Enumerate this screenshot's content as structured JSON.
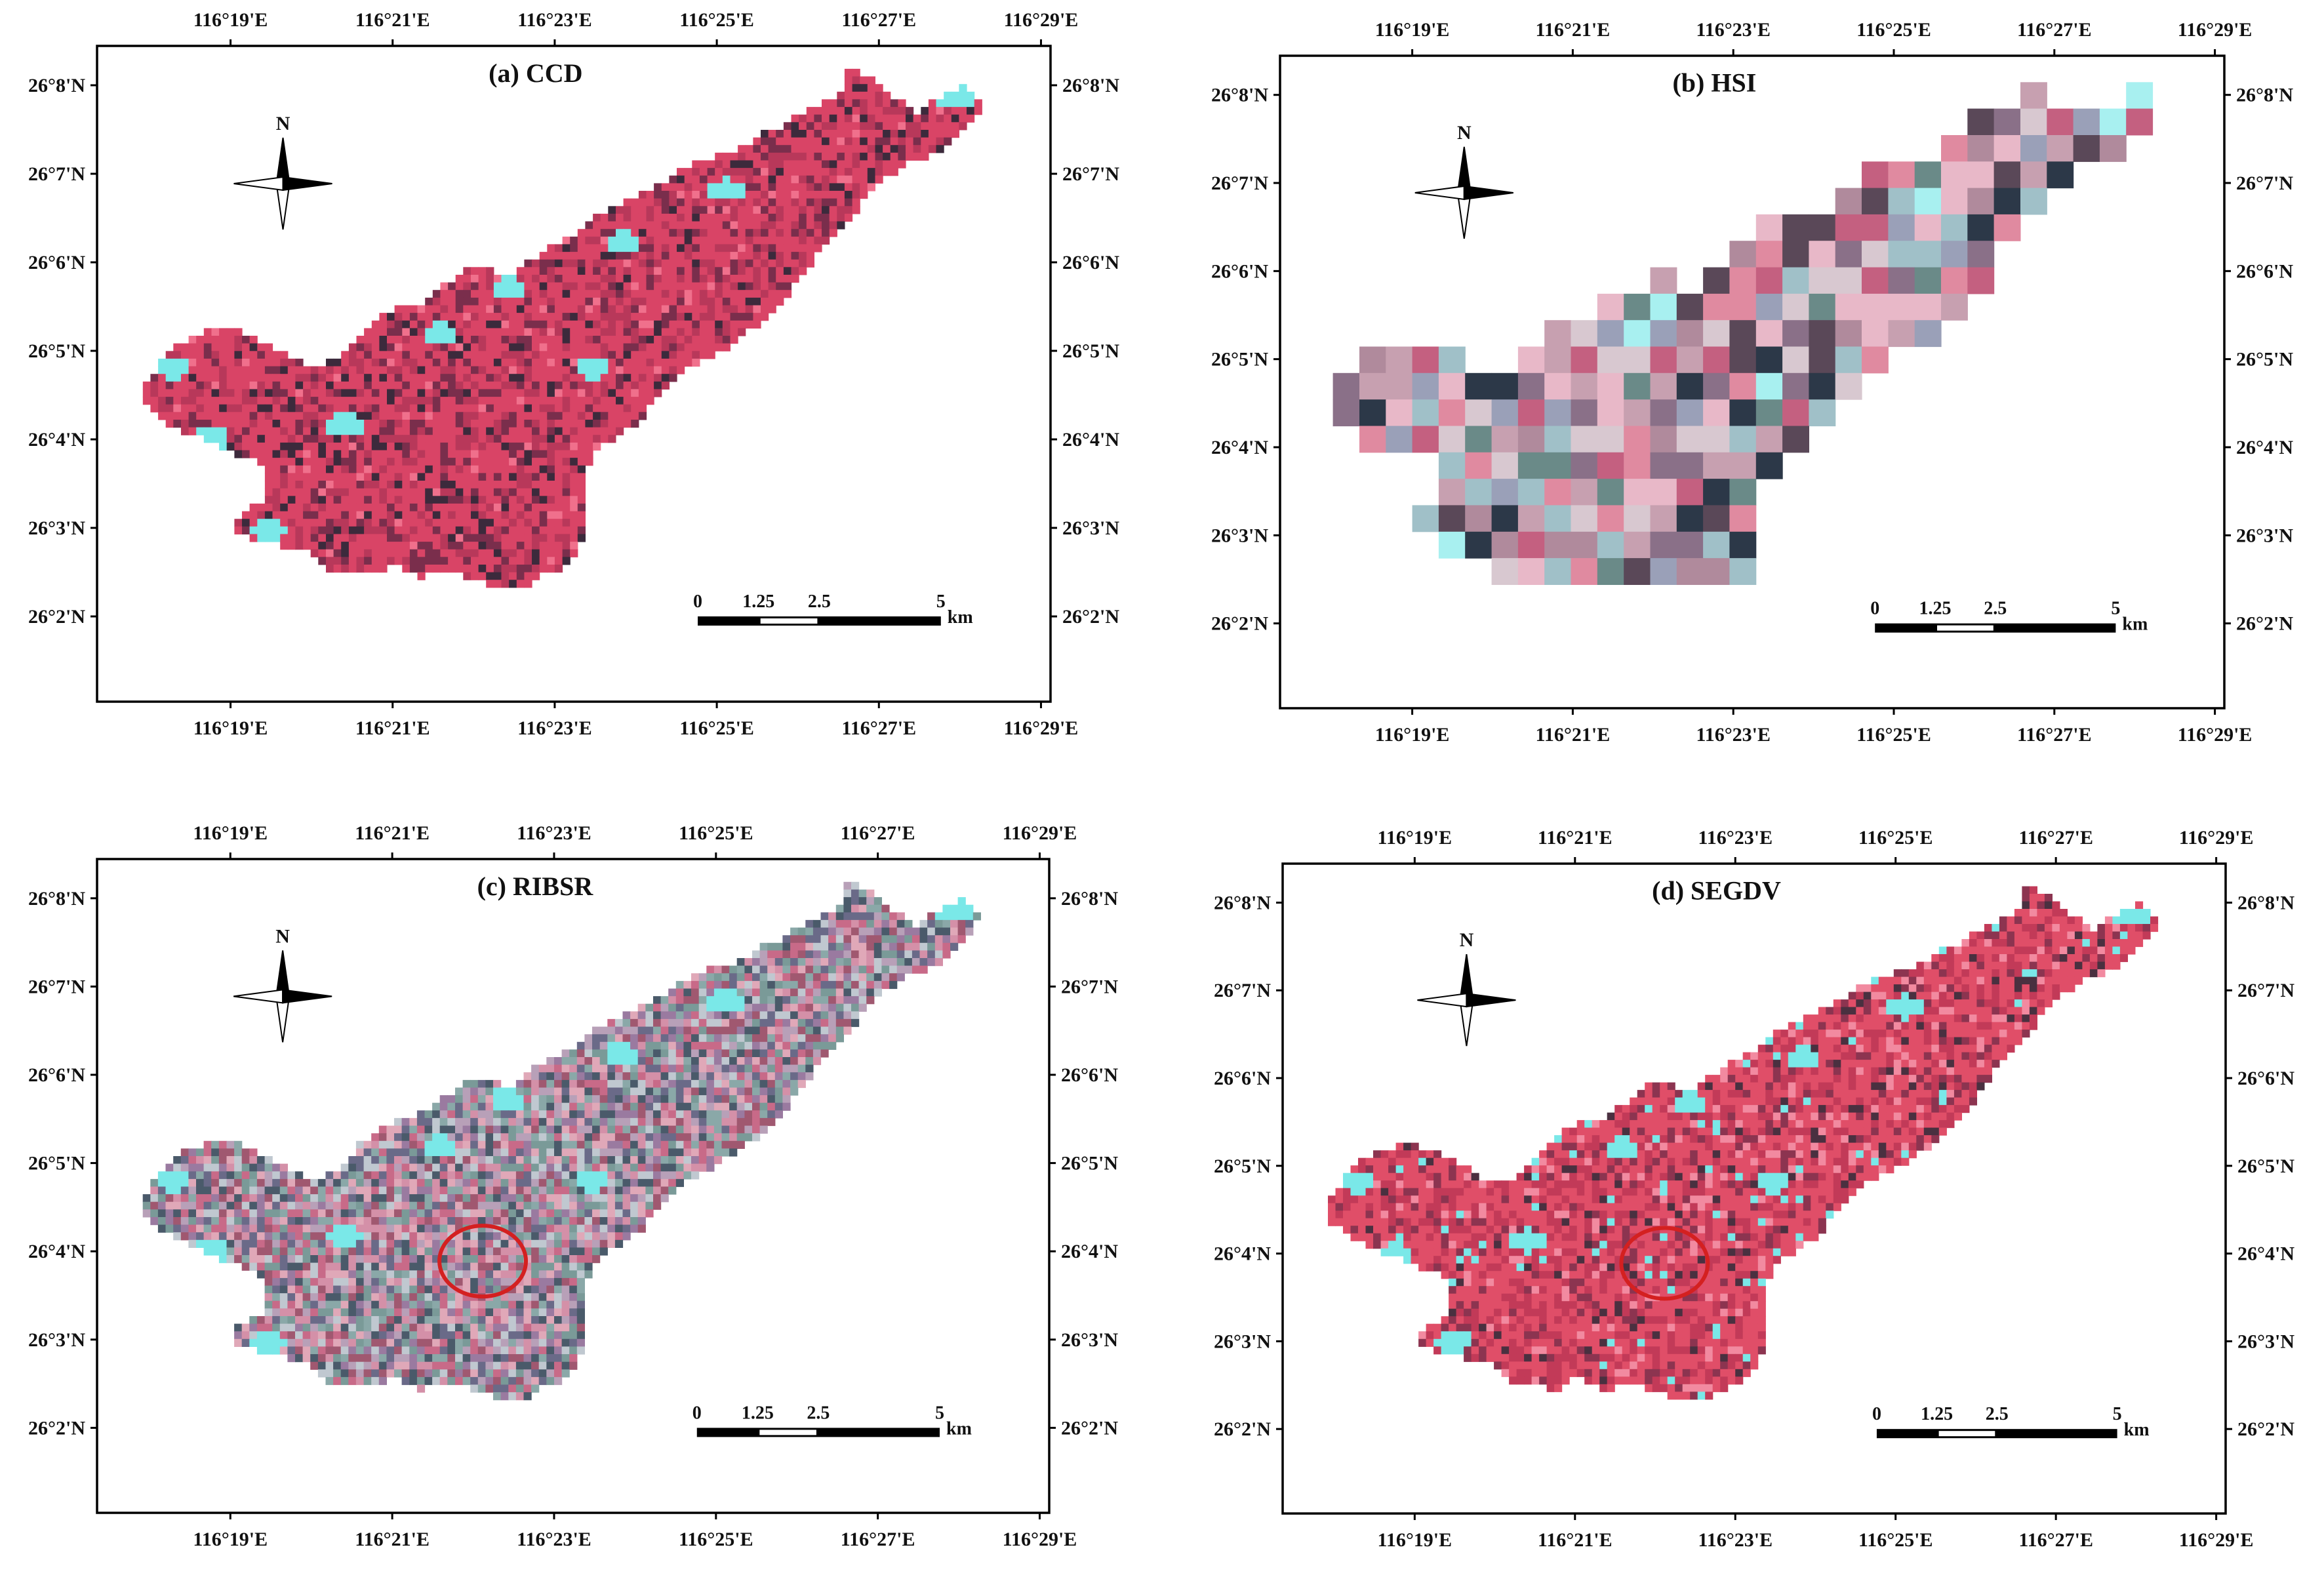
{
  "figure": {
    "panels": [
      {
        "id": "a",
        "title": "(a) CCD",
        "style": "ccd",
        "highlight_circle": false
      },
      {
        "id": "b",
        "title": "(b) HSI",
        "style": "hsi",
        "highlight_circle": false
      },
      {
        "id": "c",
        "title": "(c) RIBSR",
        "style": "ribsr",
        "highlight_circle": true
      },
      {
        "id": "d",
        "title": "(d) SEGDV",
        "style": "segdv",
        "highlight_circle": true
      }
    ],
    "longitude_labels": [
      "116°19'E",
      "116°21'E",
      "116°23'E",
      "116°25'E",
      "116°27'E",
      "116°29'E"
    ],
    "latitude_labels": [
      "26°8'N",
      "26°7'N",
      "26°6'N",
      "26°5'N",
      "26°4'N",
      "26°3'N",
      "26°2'N"
    ],
    "north_arrow_label": "N",
    "scale_bar": {
      "labels": [
        "0",
        "1.25",
        "2.5",
        "5"
      ],
      "unit": "km"
    },
    "colors": {
      "vegetation": "#e0506e",
      "dark_shadow": "#3c2a3c",
      "bright_cyan": "#7ae8e8",
      "grey_pink": "#b08a9c",
      "highlight": "#d42020"
    }
  }
}
